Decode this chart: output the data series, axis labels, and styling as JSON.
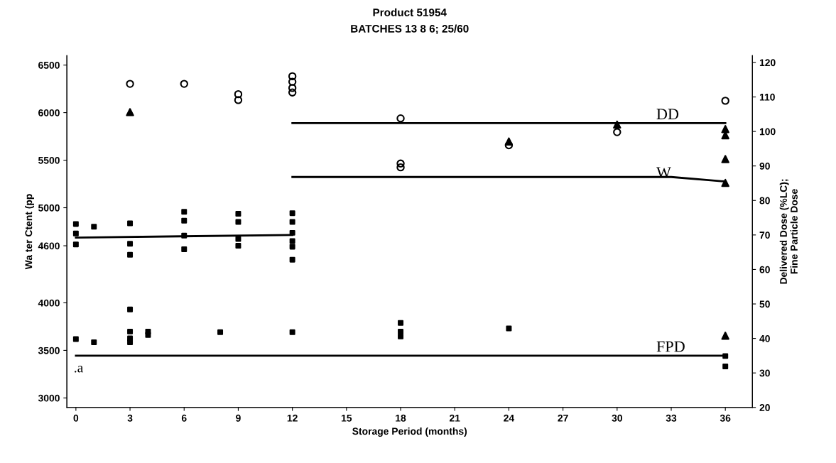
{
  "chart_data": {
    "type": "scatter",
    "title": "Product 51954",
    "subtitle": "BATCHES 13 8 6; 25/60",
    "xlabel": "Storage Period (months)",
    "ylabel": "Wa ter Ctent (pp",
    "y2label": "Delivered Dose (%LC);\nFine Particle Dose",
    "xlim": [
      -0.5,
      37.5
    ],
    "xticks": [
      0,
      3,
      6,
      9,
      12,
      15,
      18,
      21,
      24,
      27,
      30,
      33,
      36
    ],
    "ylim": [
      2900,
      6600
    ],
    "yticks": [
      3000,
      3500,
      4000,
      4600,
      5000,
      5500,
      6000,
      6500
    ],
    "y2lim": [
      20,
      122
    ],
    "y2ticks": [
      20,
      30,
      40,
      50,
      60,
      70,
      80,
      90,
      100,
      110,
      120
    ],
    "grid": false,
    "legend": false,
    "annotations": [
      ".a"
    ],
    "series": [
      {
        "axis": "y2",
        "marker": "circle",
        "color": "#000000",
        "x": [
          3,
          6,
          9,
          9,
          12,
          12,
          12,
          12,
          18,
          18,
          18,
          24,
          30,
          36
        ],
        "values": [
          113.8,
          113.8,
          110.8,
          109.1,
          116,
          114.4,
          112.6,
          111.3,
          103.8,
          90.7,
          89.6,
          96,
          99.8,
          108.9
        ]
      },
      {
        "axis": "y2",
        "marker": "triangle",
        "color": "#000000",
        "x": [
          3,
          24,
          30,
          36,
          36,
          36,
          36,
          36
        ],
        "values": [
          105.6,
          97.1,
          102,
          100.7,
          98.9,
          92,
          85.1,
          40.8
        ]
      },
      {
        "axis": "y2",
        "marker": "square",
        "color": "#000000",
        "x": [
          0,
          1,
          3,
          3,
          3,
          3,
          4,
          4,
          8,
          12,
          18,
          18,
          18,
          24,
          36,
          36
        ],
        "values": [
          39.8,
          38.9,
          48.4,
          42,
          40,
          38.9,
          42,
          41,
          41.8,
          41.8,
          44.5,
          42,
          40.6,
          42.9,
          34.9,
          31.9
        ]
      },
      {
        "axis": "y",
        "marker": "square",
        "color": "#000000",
        "x": [
          0,
          0,
          0,
          1,
          3,
          3,
          3,
          6,
          6,
          6,
          6,
          9,
          9,
          9,
          9,
          12,
          12,
          12,
          12,
          12,
          12
        ],
        "values": [
          4829,
          4729,
          4614,
          4800,
          4836,
          4621,
          4505,
          4957,
          4864,
          4707,
          4563,
          4936,
          4850,
          4671,
          4600,
          4943,
          4850,
          4736,
          4650,
          4590,
          4454
        ]
      },
      {
        "type": "line",
        "axis": "y",
        "color": "#000000",
        "x": [
          0,
          12
        ],
        "values": [
          4686,
          4714
        ]
      },
      {
        "type": "line",
        "axis": "y2",
        "name": "DD",
        "color": "#000000",
        "x": [
          12,
          36
        ],
        "values": [
          102.4,
          102.4
        ]
      },
      {
        "type": "line",
        "axis": "y2",
        "name": "W",
        "color": "#000000",
        "x": [
          12,
          33,
          36
        ],
        "values": [
          86.8,
          86.8,
          85.5
        ]
      },
      {
        "type": "line",
        "axis": "y2",
        "name": "FPD",
        "color": "#000000",
        "x": [
          0,
          36
        ],
        "values": [
          35,
          35
        ]
      }
    ]
  }
}
